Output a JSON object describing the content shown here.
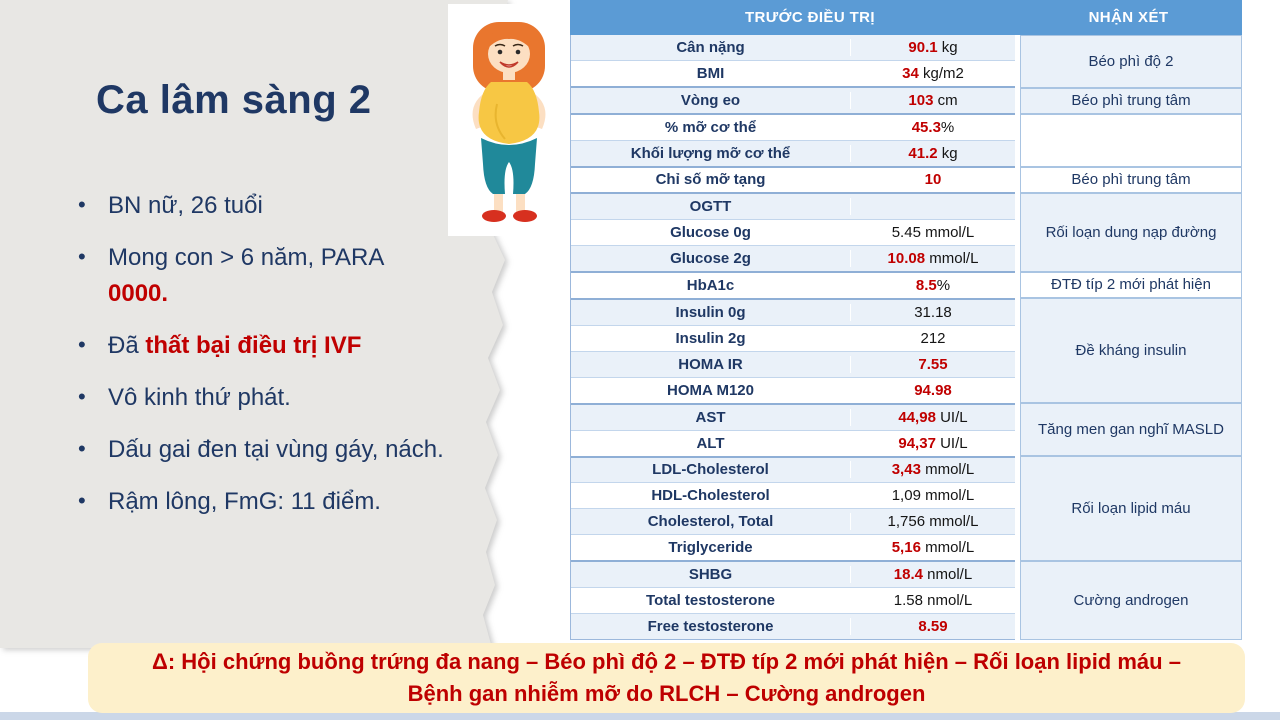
{
  "slide": {
    "title": "Ca lâm sàng 2",
    "bullet_marker": "•",
    "bullets": [
      {
        "segments": [
          {
            "text": "BN nữ, 26 tuổi"
          }
        ]
      },
      {
        "segments": [
          {
            "text": "Mong con > 6 năm, PARA "
          },
          {
            "text": "0000.",
            "red": true,
            "bold": true,
            "block": true
          }
        ]
      },
      {
        "segments": [
          {
            "text": "Đã "
          },
          {
            "text": "thất bại điều trị IVF",
            "red": true,
            "bold": true
          }
        ]
      },
      {
        "segments": [
          {
            "text": "Vô kinh thứ phát."
          }
        ]
      },
      {
        "segments": [
          {
            "text": "Dấu gai đen tại vùng gáy, nách."
          }
        ]
      },
      {
        "segments": [
          {
            "text": "Rậm lông, FmG: 11 điểm."
          }
        ]
      }
    ],
    "illustration": "obese-woman-cartoon"
  },
  "table": {
    "headers": {
      "before_treatment": "TRƯỚC ĐIỀU TRỊ",
      "remark": "NHẬN XÉT"
    },
    "rows": [
      {
        "label": "Cân nặng",
        "value": [
          {
            "text": "90.1",
            "red": true
          },
          {
            "text": " kg"
          }
        ]
      },
      {
        "label": "BMI",
        "value": [
          {
            "text": "34",
            "red": true
          },
          {
            "text": " kg/m2"
          }
        ]
      },
      {
        "label": "Vòng eo",
        "value": [
          {
            "text": "103",
            "red": true
          },
          {
            "text": " cm"
          }
        ],
        "gs": true
      },
      {
        "label": "% mỡ cơ thể",
        "value": [
          {
            "text": "45.3",
            "red": true
          },
          {
            "text": "%"
          }
        ],
        "gs": true
      },
      {
        "label": "Khối lượng mỡ cơ thể",
        "value": [
          {
            "text": "41.2",
            "red": true
          },
          {
            "text": " kg"
          }
        ]
      },
      {
        "label": "Chỉ số mỡ tạng",
        "value": [
          {
            "text": "10",
            "red": true
          }
        ],
        "gs": true
      },
      {
        "label": "OGTT",
        "value": [],
        "gs": true
      },
      {
        "label": "Glucose 0g",
        "value": [
          {
            "text": "5.45 mmol/L"
          }
        ]
      },
      {
        "label": "Glucose 2g",
        "value": [
          {
            "text": "10.08",
            "red": true
          },
          {
            "text": " mmol/L"
          }
        ]
      },
      {
        "label": "HbA1c",
        "value": [
          {
            "text": "8.5",
            "red": true
          },
          {
            "text": "%"
          }
        ],
        "gs": true
      },
      {
        "label": "Insulin 0g",
        "value": [
          {
            "text": "31.18"
          }
        ],
        "gs": true
      },
      {
        "label": "Insulin 2g",
        "value": [
          {
            "text": "212"
          }
        ]
      },
      {
        "label": "HOMA IR",
        "value": [
          {
            "text": "7.55",
            "red": true
          }
        ]
      },
      {
        "label": "HOMA M120",
        "value": [
          {
            "text": "94.98",
            "red": true
          }
        ]
      },
      {
        "label": "AST",
        "value": [
          {
            "text": "44,98",
            "red": true
          },
          {
            "text": " UI/L"
          }
        ],
        "gs": true
      },
      {
        "label": "ALT",
        "value": [
          {
            "text": "94,37",
            "red": true
          },
          {
            "text": " UI/L"
          }
        ]
      },
      {
        "label": "LDL-Cholesterol",
        "value": [
          {
            "text": "3,43",
            "red": true
          },
          {
            "text": " mmol/L"
          }
        ],
        "gs": true
      },
      {
        "label": "HDL-Cholesterol",
        "value": [
          {
            "text": "1,09 mmol/L"
          }
        ]
      },
      {
        "label": "Cholesterol, Total",
        "value": [
          {
            "text": "1,756 mmol/L"
          }
        ]
      },
      {
        "label": "Triglyceride",
        "value": [
          {
            "text": "5,16",
            "red": true
          },
          {
            "text": " mmol/L"
          }
        ]
      },
      {
        "label": "SHBG",
        "value": [
          {
            "text": "18.4",
            "red": true
          },
          {
            "text": " nmol/L"
          }
        ],
        "gs": true
      },
      {
        "label": "Total testosterone",
        "value": [
          {
            "text": "1.58 nmol/L"
          }
        ]
      },
      {
        "label": "Free testosterone",
        "value": [
          {
            "text": "8.59",
            "red": true
          }
        ]
      }
    ],
    "remark_groups": [
      {
        "start": 0,
        "span": 2,
        "text": "Béo phì độ 2",
        "shaded": true
      },
      {
        "start": 2,
        "span": 1,
        "text": "Béo phì trung tâm",
        "shaded": true
      },
      {
        "start": 3,
        "span": 2,
        "text": "",
        "shaded": false
      },
      {
        "start": 5,
        "span": 1,
        "text": "Béo phì trung tâm",
        "shaded": false
      },
      {
        "start": 6,
        "span": 3,
        "text": "Rối loạn dung nạp đường",
        "shaded": true
      },
      {
        "start": 9,
        "span": 1,
        "text": "ĐTĐ típ 2 mới phát hiện",
        "shaded": false
      },
      {
        "start": 10,
        "span": 4,
        "text": "Đề kháng insulin",
        "shaded": true
      },
      {
        "start": 14,
        "span": 2,
        "text": "Tăng men gan nghĩ MASLD",
        "shaded": true
      },
      {
        "start": 16,
        "span": 4,
        "text": "Rối loạn lipid máu",
        "shaded": true
      },
      {
        "start": 20,
        "span": 3,
        "text": "Cường androgen",
        "shaded": true
      }
    ]
  },
  "banner": {
    "line1": "Δ: Hội chứng buồng trứng đa nang – Béo phì độ 2 – ĐTĐ típ 2 mới phát hiện – Rối loạn lipid máu –",
    "line2": "Bệnh gan nhiễm mỡ do RLCH – Cường androgen"
  },
  "colors": {
    "header_blue": "#5B9BD5",
    "band_blue": "#EAF1F9",
    "navy_text": "#1F3864",
    "alert_red": "#C00000",
    "banner_bg": "#FDF0CB",
    "banner_text": "#BE0000",
    "paper_gray": "#E8E7E4",
    "bottom_strip": "#CBD7E8"
  }
}
